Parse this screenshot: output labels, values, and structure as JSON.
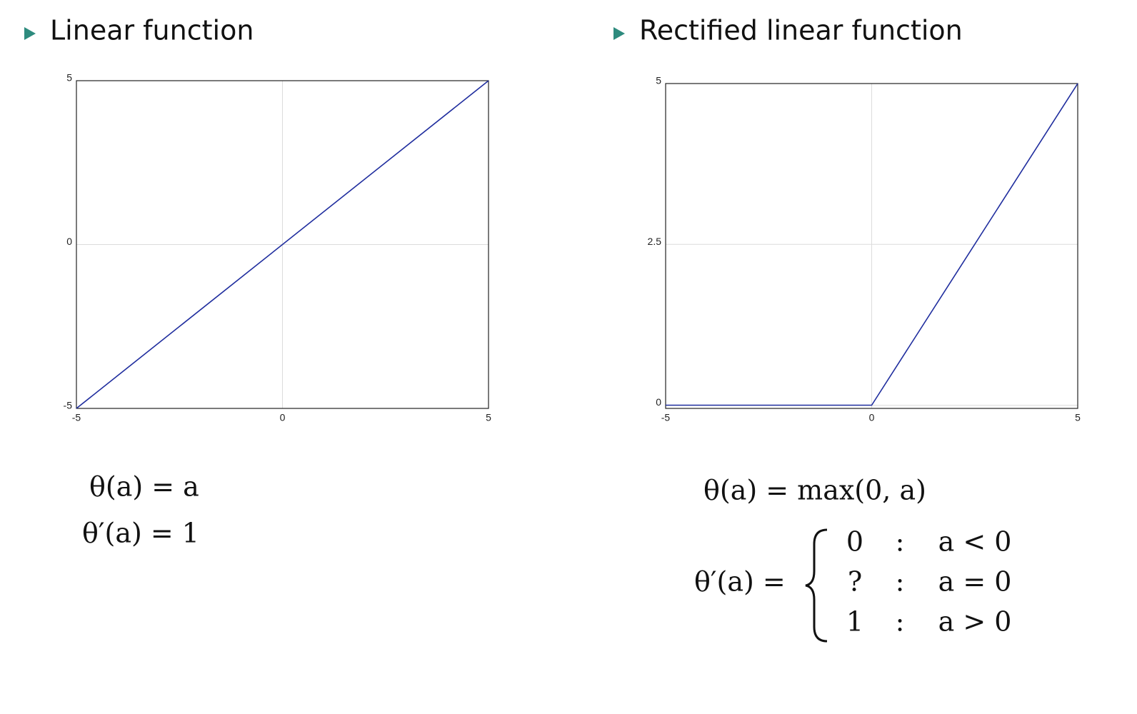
{
  "chart_data": [
    {
      "type": "line",
      "title": "Linear function",
      "x": [
        -5,
        5
      ],
      "values": [
        -5,
        5
      ],
      "color": "#1f2d9e",
      "xlim": [
        -5,
        5
      ],
      "ylim": [
        -5,
        5
      ],
      "xticks": [
        -5,
        0,
        5
      ],
      "yticks": [
        -5,
        0,
        5
      ],
      "grid": true,
      "formula": "θ(a) = a",
      "derivative": {
        "lhs": "θ′(a) = 1"
      }
    },
    {
      "type": "line",
      "title": "Rectified linear function",
      "x": [
        -5,
        0,
        5
      ],
      "values": [
        0,
        0,
        5
      ],
      "color": "#1f2d9e",
      "xlim": [
        -5,
        5
      ],
      "ylim": [
        -0.05,
        5
      ],
      "xticks": [
        -5,
        0,
        5
      ],
      "yticks": [
        0,
        2.5,
        5
      ],
      "grid": true,
      "formula": "θ(a) = max(0, a)",
      "derivative": {
        "lhs": "θ′(a) =",
        "cases": [
          [
            "0",
            ":",
            "a < 0"
          ],
          [
            "?",
            ":",
            "a = 0"
          ],
          [
            "1",
            ":",
            "a > 0"
          ]
        ]
      }
    }
  ]
}
